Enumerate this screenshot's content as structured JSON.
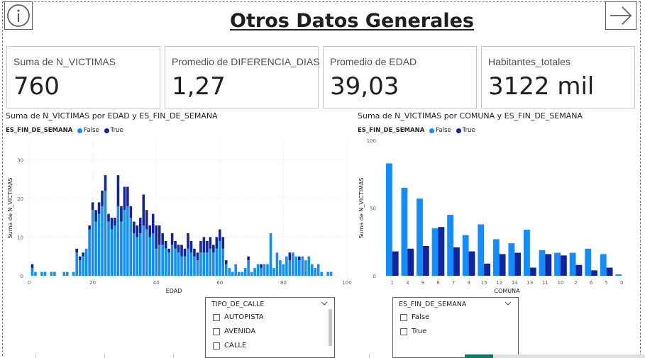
{
  "page": {
    "title": "Otros Datos Generales",
    "info_icon": "info-circle-icon",
    "nav_icon": "arrow-right-icon"
  },
  "cards": [
    {
      "label": "Suma de N_VICTIMAS",
      "value": "760"
    },
    {
      "label": "Promedio de DIFERENCIA_DIAS",
      "value": "1,27"
    },
    {
      "label": "Promedio de EDAD",
      "value": "39,03"
    },
    {
      "label": "Habitantes_totales",
      "value": "3122 mil"
    }
  ],
  "colors": {
    "false_series": "#118dff",
    "true_series": "#12239e",
    "title": "#1f1f1f",
    "border": "#c8c6c4"
  },
  "chart_data": [
    {
      "type": "bar",
      "title": "Suma de N_VICTIMAS por EDAD y ES_FIN_DE_SEMANA",
      "legend_title": "ES_FIN_DE_SEMANA",
      "legend": [
        "False",
        "True"
      ],
      "legend_placement": "top-left",
      "stacked": true,
      "xlabel": "EDAD",
      "ylabel": "Suma de N_VICTIMAS",
      "xlim": [
        0,
        100
      ],
      "ylim": [
        0,
        35
      ],
      "xticks": [
        0,
        20,
        40,
        60,
        80,
        100
      ],
      "yticks": [
        0,
        10,
        20,
        30
      ],
      "grid": true,
      "x": [
        1,
        2,
        4,
        5,
        7,
        8,
        11,
        12,
        14,
        15,
        16,
        17,
        18,
        19,
        20,
        21,
        22,
        23,
        24,
        25,
        26,
        27,
        28,
        29,
        30,
        31,
        32,
        33,
        34,
        35,
        36,
        37,
        38,
        39,
        40,
        41,
        42,
        43,
        44,
        45,
        46,
        47,
        48,
        49,
        50,
        51,
        52,
        53,
        54,
        55,
        56,
        57,
        58,
        59,
        60,
        61,
        62,
        63,
        64,
        65,
        66,
        67,
        68,
        69,
        70,
        71,
        72,
        73,
        74,
        75,
        76,
        77,
        78,
        79,
        80,
        81,
        82,
        83,
        84,
        85,
        86,
        87,
        88,
        89,
        90,
        91,
        92,
        94,
        95
      ],
      "series": [
        {
          "name": "False",
          "values": [
            2,
            1,
            1,
            1,
            1,
            1,
            1,
            1,
            1,
            6,
            4,
            5,
            7,
            12,
            17,
            14,
            16,
            18,
            22,
            14,
            12,
            13,
            18,
            14,
            17,
            18,
            15,
            11,
            10,
            11,
            13,
            12,
            10,
            11,
            7,
            8,
            8,
            7,
            6,
            8,
            7,
            6,
            5,
            5,
            7,
            6,
            5,
            4,
            6,
            6,
            6,
            7,
            6,
            7,
            9,
            7,
            3,
            2,
            1,
            3,
            1,
            1,
            2,
            4,
            1,
            2,
            3,
            2,
            3,
            3,
            11,
            2,
            6,
            4,
            3,
            5,
            4,
            6,
            5,
            4,
            5,
            4,
            5,
            3,
            2,
            3,
            1,
            1,
            1
          ]
        },
        {
          "name": "True",
          "values": [
            1,
            0,
            0,
            0,
            0,
            0,
            0,
            0,
            0,
            1,
            1,
            1,
            0,
            1,
            2,
            3,
            3,
            4,
            4,
            2,
            3,
            2,
            8,
            4,
            6,
            5,
            3,
            3,
            3,
            4,
            8,
            5,
            3,
            5,
            6,
            5,
            3,
            2,
            1,
            3,
            2,
            2,
            3,
            2,
            4,
            3,
            2,
            2,
            3,
            4,
            3,
            3,
            2,
            3,
            3,
            3,
            1,
            0,
            0,
            0,
            0,
            0,
            0,
            1,
            0,
            0,
            0,
            1,
            0,
            0,
            0,
            0,
            0,
            0,
            0,
            0,
            2,
            0,
            0,
            1,
            0,
            0,
            0,
            0,
            0,
            0,
            0,
            0,
            0
          ]
        }
      ]
    },
    {
      "type": "bar",
      "title": "Suma de N_VICTIMAS por COMUNA y ES_FIN_DE_SEMANA",
      "legend_title": "ES_FIN_DE_SEMANA",
      "legend": [
        "False",
        "True"
      ],
      "legend_placement": "top-left",
      "stacked": false,
      "xlabel": "COMUNA",
      "ylabel": "Suma de N_VICTIMAS",
      "ylim": [
        0,
        100
      ],
      "yticks": [
        0,
        50,
        100
      ],
      "grid": false,
      "categories": [
        "1",
        "4",
        "9",
        "8",
        "7",
        "3",
        "15",
        "12",
        "14",
        "13",
        "11",
        "10",
        "2",
        "6",
        "5",
        "0"
      ],
      "series": [
        {
          "name": "False",
          "values": [
            83,
            65,
            57,
            35,
            45,
            30,
            38,
            27,
            24,
            34,
            19,
            17,
            17,
            20,
            16,
            1
          ]
        },
        {
          "name": "True",
          "values": [
            18,
            20,
            22,
            36,
            21,
            18,
            9,
            16,
            17,
            6,
            16,
            15,
            8,
            4,
            6,
            0
          ]
        }
      ]
    }
  ],
  "slicers": [
    {
      "header": "TIPO_DE_CALLE",
      "items": [
        "AUTOPISTA",
        "AVENIDA",
        "CALLE"
      ]
    },
    {
      "header": "ES_FIN_DE_SEMANA",
      "items": [
        "False",
        "True"
      ]
    }
  ]
}
